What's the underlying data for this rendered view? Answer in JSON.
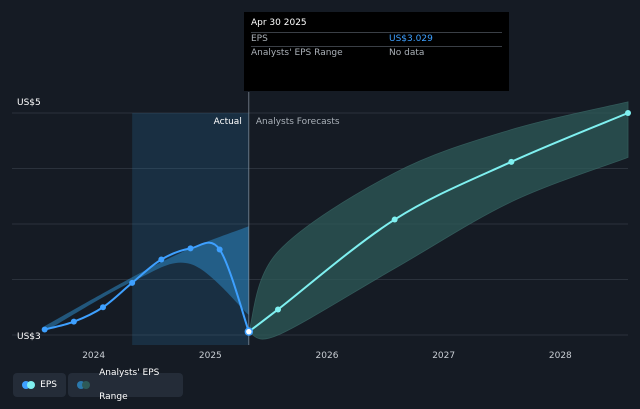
{
  "colors": {
    "background": "#151b24",
    "eps_line": "#3ea0ff",
    "forecast_line": "#7ff0f0",
    "forecast_band": "#2e5a58",
    "actual_band": "#2a78ac"
  },
  "tooltip": {
    "date": "Apr 30 2025",
    "rows": [
      {
        "label": "EPS",
        "value": "US$3.029"
      },
      {
        "label": "Analysts' EPS Range",
        "value": "No data"
      }
    ]
  },
  "legend": {
    "items": [
      {
        "label": "EPS",
        "icon": "eps-dots-icon"
      },
      {
        "label": "Analysts' EPS Range",
        "icon": "range-dots-icon"
      }
    ]
  },
  "chart_data": {
    "type": "line",
    "y_tick_labels": [
      "US$5",
      "US$3"
    ],
    "x_tick_labels": [
      "2024",
      "2025",
      "2026",
      "2027",
      "2028"
    ],
    "region_labels": {
      "actual": "Actual",
      "forecast": "Analysts Forecasts"
    },
    "y_range": [
      3.0,
      5.0
    ],
    "x_range": [
      2023.3,
      2028.58
    ],
    "highlight_start": 2024.33,
    "divider_x": 2025.33,
    "series": [
      {
        "name": "EPS",
        "x": [
          2023.58,
          2023.83,
          2024.08,
          2024.33,
          2024.58,
          2024.83,
          2025.08,
          2025.33
        ],
        "y": [
          3.05,
          3.12,
          3.25,
          3.47,
          3.68,
          3.78,
          3.77,
          3.03
        ]
      },
      {
        "name": "Analysts' EPS Range",
        "x": [
          2025.33,
          2025.58,
          2026.58,
          2027.58,
          2028.58
        ],
        "y": [
          3.03,
          3.23,
          4.04,
          4.56,
          5.0
        ]
      }
    ],
    "actual_range": {
      "x": [
        2023.58,
        2024.33,
        2024.83,
        2025.33
      ],
      "upper": [
        3.08,
        3.52,
        3.78,
        3.98
      ],
      "lower": [
        3.03,
        3.48,
        3.64,
        3.18
      ]
    },
    "forecast_range": {
      "x": [
        2025.33,
        2025.58,
        2026.58,
        2027.58,
        2028.58
      ],
      "upper": [
        3.03,
        3.75,
        4.46,
        4.85,
        5.1
      ],
      "lower": [
        3.03,
        3.0,
        3.6,
        4.2,
        4.6
      ]
    }
  }
}
